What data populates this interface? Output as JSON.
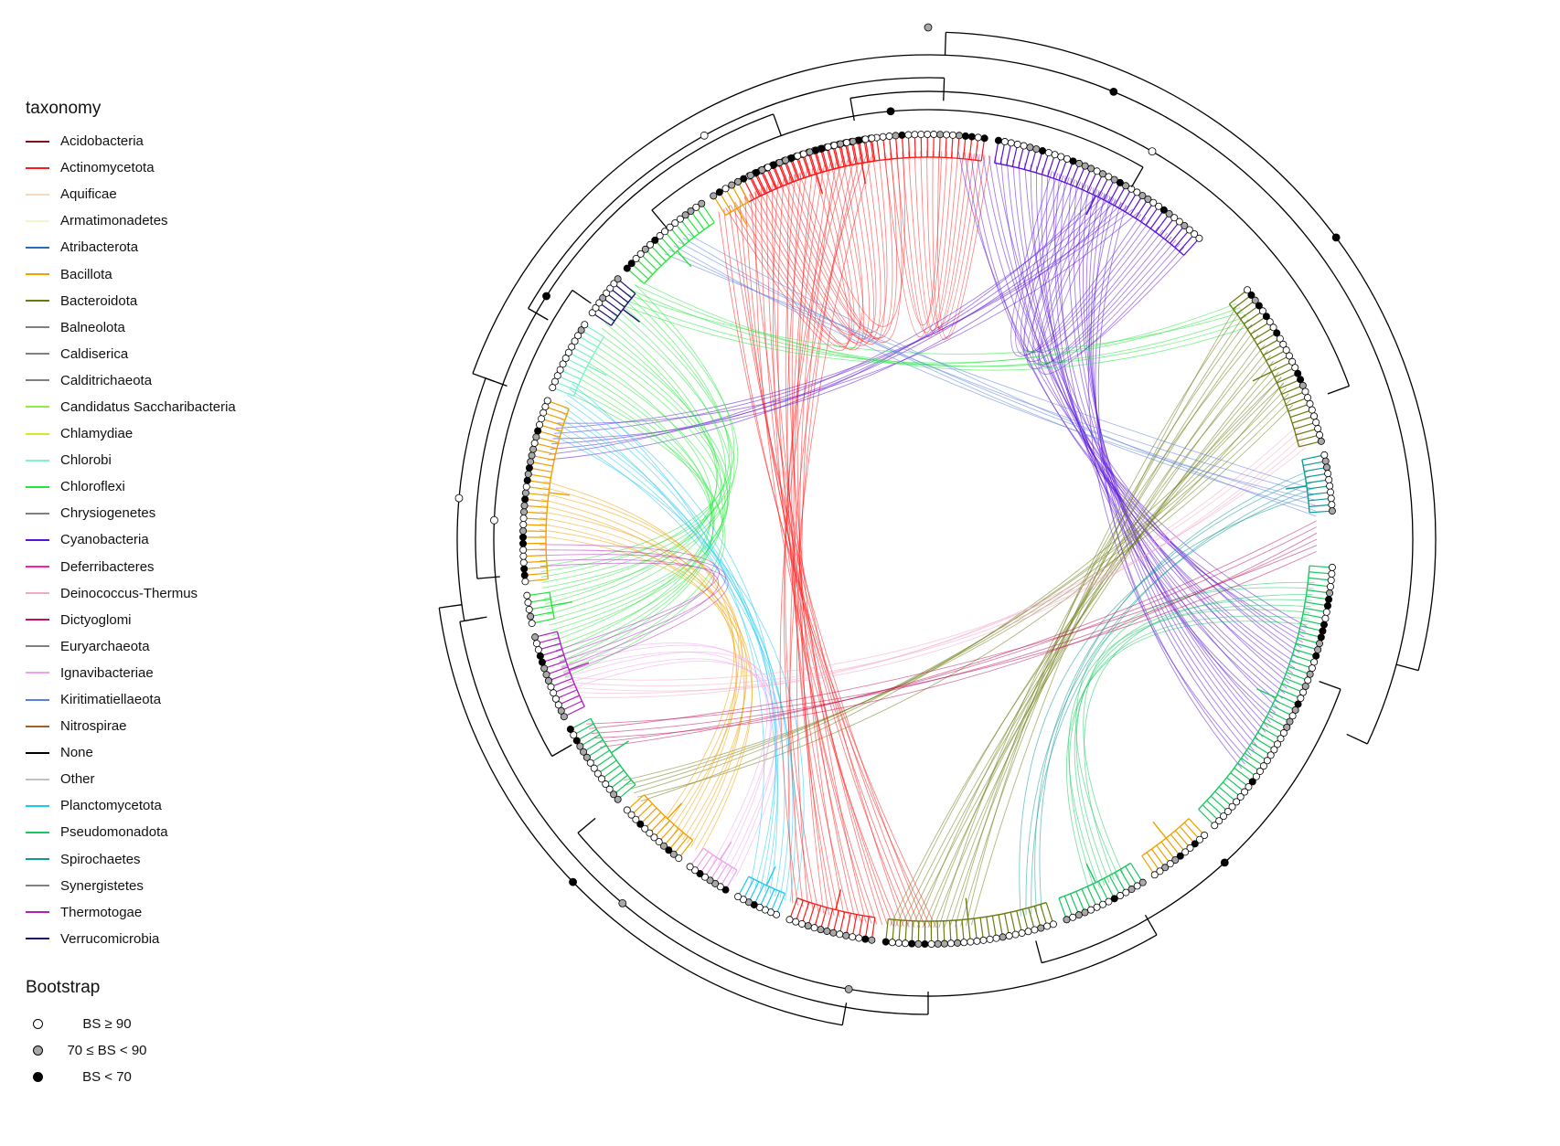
{
  "legend": {
    "taxonomy_title": "taxonomy",
    "taxonomy_items": [
      {
        "label": "Acidobacteria",
        "color": "#7f0f1e"
      },
      {
        "label": "Actinomycetota",
        "color": "#ff1a1a"
      },
      {
        "label": "Aquificae",
        "color": "#f8d8b8"
      },
      {
        "label": "Armatimonadetes",
        "color": "#f3f7cc"
      },
      {
        "label": "Atribacterota",
        "color": "#2b6cb8"
      },
      {
        "label": "Bacillota",
        "color": "#f0a000"
      },
      {
        "label": "Bacteroidota",
        "color": "#6b7a10"
      },
      {
        "label": "Balneolota",
        "color": "#808080"
      },
      {
        "label": "Caldiserica",
        "color": "#808080"
      },
      {
        "label": "Calditrichaeota",
        "color": "#808080"
      },
      {
        "label": "Candidatus Saccharibacteria",
        "color": "#8cf040"
      },
      {
        "label": "Chlamydiae",
        "color": "#d6e62a"
      },
      {
        "label": "Chlorobi",
        "color": "#7ef2c8"
      },
      {
        "label": "Chloroflexi",
        "color": "#22e83a"
      },
      {
        "label": "Chrysiogenetes",
        "color": "#808080"
      },
      {
        "label": "Cyanobacteria",
        "color": "#5b12d8"
      },
      {
        "label": "Deferribacteres",
        "color": "#ff1ab0"
      },
      {
        "label": "Deinococcus-Thermus",
        "color": "#f4a8c8"
      },
      {
        "label": "Dictyoglomi",
        "color": "#c0105a"
      },
      {
        "label": "Euryarchaeota",
        "color": "#808080"
      },
      {
        "label": "Ignavibacteriae",
        "color": "#f0a0f0"
      },
      {
        "label": "Kiritimatiellaeota",
        "color": "#5a7fe0"
      },
      {
        "label": "Nitrospirae",
        "color": "#a0602a"
      },
      {
        "label": "None",
        "color": "#000000"
      },
      {
        "label": "Other",
        "color": "#c0c0c0"
      },
      {
        "label": "Planctomycetota",
        "color": "#1ec8f0"
      },
      {
        "label": "Pseudomonadota",
        "color": "#18c860"
      },
      {
        "label": "Spirochaetes",
        "color": "#109a96"
      },
      {
        "label": "Synergistetes",
        "color": "#808080"
      },
      {
        "label": "Thermotogae",
        "color": "#b020c0"
      },
      {
        "label": "Verrucomicrobia",
        "color": "#1a1070"
      }
    ],
    "bootstrap_title": "Bootstrap",
    "bootstrap_items": [
      {
        "label": "BS ≥ 90",
        "fill": "#ffffff"
      },
      {
        "label": "70 ≤ BS < 90",
        "fill": "#a8a8a8"
      },
      {
        "label": "BS < 70",
        "fill": "#000000"
      }
    ]
  },
  "tree": {
    "clades": [
      {
        "taxon": "Actinomycetota",
        "color": "#ff1a1a",
        "angle_start": -118,
        "angle_end": -82
      },
      {
        "taxon": "Cyanobacteria",
        "color": "#5b12d8",
        "angle_start": -80,
        "angle_end": -48
      },
      {
        "taxon": "Bacteroidota",
        "color": "#6b7a10",
        "angle_start": -38,
        "angle_end": -14
      },
      {
        "taxon": "Spirochaetes",
        "color": "#109a96",
        "angle_start": -12,
        "angle_end": -4
      },
      {
        "taxon": "Pseudomonadota",
        "color": "#18c860",
        "angle_start": 4,
        "angle_end": 45
      },
      {
        "taxon": "Bacillota",
        "color": "#f0a000",
        "angle_start": 47,
        "angle_end": 56
      },
      {
        "taxon": "Pseudomonadota",
        "color": "#18c860",
        "angle_start": 58,
        "angle_end": 70
      },
      {
        "taxon": "Bacteroidota",
        "color": "#6b7a10",
        "angle_start": 72,
        "angle_end": 96
      },
      {
        "taxon": "Actinomycetota",
        "color": "#ff1a1a",
        "angle_start": 98,
        "angle_end": 110
      },
      {
        "taxon": "Planctomycetota",
        "color": "#1ec8f0",
        "angle_start": 112,
        "angle_end": 118
      },
      {
        "taxon": "Ignavibacteriae",
        "color": "#f0a0f0",
        "angle_start": 120,
        "angle_end": 126
      },
      {
        "taxon": "Bacillota",
        "color": "#f0a000",
        "angle_start": 128,
        "angle_end": 138
      },
      {
        "taxon": "Pseudomonadota",
        "color": "#18c860",
        "angle_start": 140,
        "angle_end": 152
      },
      {
        "taxon": "Thermotogae",
        "color": "#b020c0",
        "angle_start": 154,
        "angle_end": 166
      },
      {
        "taxon": "Chloroflexi",
        "color": "#22e83a",
        "angle_start": 168,
        "angle_end": 172
      },
      {
        "taxon": "Bacillota",
        "color": "#f0a000",
        "angle_start": 174,
        "angle_end": 200
      },
      {
        "taxon": "Chlorobi",
        "color": "#7ef2c8",
        "angle_start": 202,
        "angle_end": 212
      },
      {
        "taxon": "Verrucomicrobia",
        "color": "#1a1070",
        "angle_start": 214,
        "angle_end": 220
      },
      {
        "taxon": "Chloroflexi",
        "color": "#22e83a",
        "angle_start": 222,
        "angle_end": 236
      },
      {
        "taxon": "Bacillota",
        "color": "#f0a000",
        "angle_start": 238,
        "angle_end": 242
      },
      {
        "taxon": "Actinomycetota",
        "color": "#ff1a1a",
        "angle_start": 244,
        "angle_end": 262
      }
    ],
    "links": [
      {
        "color": "#ff1a1a",
        "from_angle": -110,
        "to_angle": 100,
        "count": 28
      },
      {
        "color": "#ff1a1a",
        "from_angle": -100,
        "to_angle": 245,
        "count": 16
      },
      {
        "color": "#ff1a1a",
        "from_angle": -92,
        "to_angle": -84,
        "count": 10
      },
      {
        "color": "#5b12d8",
        "from_angle": -72,
        "to_angle": 25,
        "count": 30
      },
      {
        "color": "#5b12d8",
        "from_angle": -66,
        "to_angle": -52,
        "count": 12
      },
      {
        "color": "#5b12d8",
        "from_angle": -60,
        "to_angle": 195,
        "count": 8
      },
      {
        "color": "#22e83a",
        "from_angle": -148,
        "to_angle": 168,
        "count": 22
      },
      {
        "color": "#22e83a",
        "from_angle": -140,
        "to_angle": -35,
        "count": 6
      },
      {
        "color": "#6b7a10",
        "from_angle": -30,
        "to_angle": 90,
        "count": 16
      },
      {
        "color": "#6b7a10",
        "from_angle": -22,
        "to_angle": 140,
        "count": 6
      },
      {
        "color": "#1ec8f0",
        "from_angle": 200,
        "to_angle": 114,
        "count": 10
      },
      {
        "color": "#f0a000",
        "from_angle": 185,
        "to_angle": 130,
        "count": 10
      },
      {
        "color": "#f0a0f0",
        "from_angle": 160,
        "to_angle": 122,
        "count": 6
      },
      {
        "color": "#18c860",
        "from_angle": 10,
        "to_angle": 63,
        "count": 8
      },
      {
        "color": "#109a96",
        "from_angle": -8,
        "to_angle": 75,
        "count": 5
      },
      {
        "color": "#c0105a",
        "from_angle": 0,
        "to_angle": 150,
        "count": 6
      },
      {
        "color": "#f4a8c8",
        "from_angle": -15,
        "to_angle": 158,
        "count": 5
      },
      {
        "color": "#5a7fe0",
        "from_angle": 230,
        "to_angle": -5,
        "count": 6
      },
      {
        "color": "#b020c0",
        "from_angle": 162,
        "to_angle": 178,
        "count": 5
      }
    ]
  }
}
